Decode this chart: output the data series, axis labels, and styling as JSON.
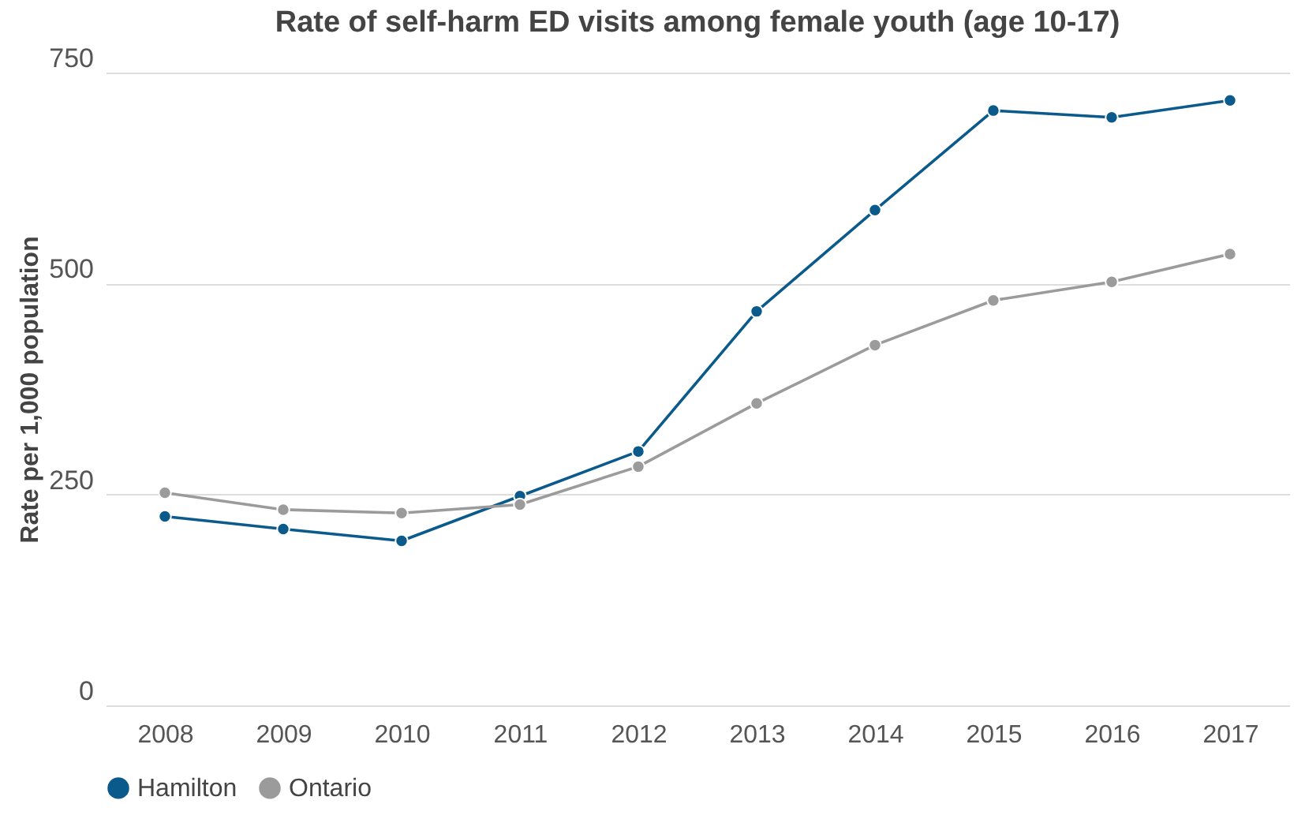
{
  "chart_data": {
    "type": "line",
    "title": "Rate of self-harm ED visits among female youth (age 10-17)",
    "ylabel": "Rate per 1,000 population",
    "categories": [
      "2008",
      "2009",
      "2010",
      "2011",
      "2012",
      "2013",
      "2014",
      "2015",
      "2016",
      "2017"
    ],
    "series": [
      {
        "name": "Hamilton",
        "color": "#0b5a8c",
        "values": [
          224,
          209,
          195,
          248,
          301,
          467,
          587,
          705,
          697,
          717
        ]
      },
      {
        "name": "Ontario",
        "color": "#9b9b9b",
        "values": [
          252,
          232,
          228,
          238,
          283,
          358,
          427,
          480,
          502,
          535
        ]
      }
    ],
    "ylim": [
      0,
      750
    ],
    "yticks": [
      0,
      250,
      500,
      750
    ],
    "grid": "y",
    "legend": "bottom",
    "marker": "circle",
    "line_style": "solid"
  }
}
